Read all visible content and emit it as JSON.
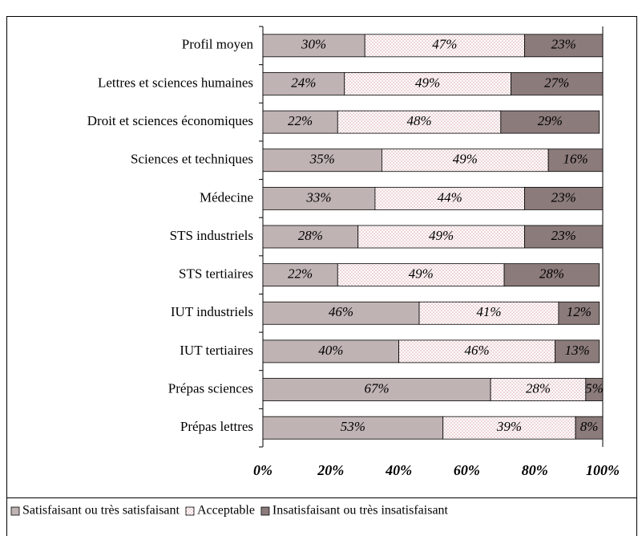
{
  "chart_data": {
    "type": "stacked-bar-horizontal",
    "categories": [
      "Profil moyen",
      "Lettres et sciences humaines",
      "Droit et sciences économiques",
      "Sciences et techniques",
      "Médecine",
      "STS industriels",
      "STS tertiaires",
      "IUT industriels",
      "IUT tertiaires",
      "Prépas sciences",
      "Prépas lettres"
    ],
    "series": [
      {
        "name": "Satisfaisant ou très satisfaisant",
        "color": "#c0b3b3",
        "pattern": "solid",
        "values": [
          30,
          24,
          22,
          35,
          33,
          28,
          22,
          46,
          40,
          67,
          53
        ],
        "value_labels": [
          "30%",
          "24%",
          "22%",
          "35%",
          "33%",
          "28%",
          "22%",
          "46%",
          "40%",
          "67%",
          "53%"
        ]
      },
      {
        "name": "Acceptable",
        "color": "#d9a0a8",
        "pattern": "dots",
        "values": [
          47,
          49,
          48,
          49,
          44,
          49,
          49,
          41,
          46,
          28,
          39
        ],
        "value_labels": [
          "47%",
          "49%",
          "48%",
          "49%",
          "44%",
          "49%",
          "49%",
          "41%",
          "46%",
          "28%",
          "39%"
        ]
      },
      {
        "name": "Insatisfaisant ou très insatisfaisant",
        "color": "#8c7b7b",
        "pattern": "solid",
        "values": [
          23,
          27,
          29,
          16,
          23,
          23,
          28,
          12,
          13,
          5,
          8
        ],
        "value_labels": [
          "23%",
          "27%",
          "29%",
          "16%",
          "23%",
          "23%",
          "28%",
          "12%",
          "13%",
          "5%",
          "8%"
        ]
      }
    ],
    "xlim": [
      0,
      100
    ],
    "xticks": [
      {
        "value": 0,
        "label": "0%"
      },
      {
        "value": 20,
        "label": "20%"
      },
      {
        "value": 40,
        "label": "40%"
      },
      {
        "value": 60,
        "label": "60%"
      },
      {
        "value": 80,
        "label": "80%"
      },
      {
        "value": 100,
        "label": "100%"
      }
    ],
    "legend": "bottom"
  }
}
